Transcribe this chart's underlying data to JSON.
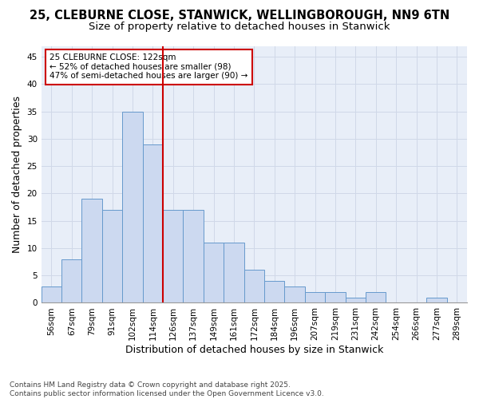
{
  "title_line1": "25, CLEBURNE CLOSE, STANWICK, WELLINGBOROUGH, NN9 6TN",
  "title_line2": "Size of property relative to detached houses in Stanwick",
  "xlabel": "Distribution of detached houses by size in Stanwick",
  "ylabel": "Number of detached properties",
  "categories": [
    "56sqm",
    "67sqm",
    "79sqm",
    "91sqm",
    "102sqm",
    "114sqm",
    "126sqm",
    "137sqm",
    "149sqm",
    "161sqm",
    "172sqm",
    "184sqm",
    "196sqm",
    "207sqm",
    "219sqm",
    "231sqm",
    "242sqm",
    "254sqm",
    "266sqm",
    "277sqm",
    "289sqm"
  ],
  "values": [
    3,
    8,
    19,
    17,
    35,
    29,
    17,
    17,
    11,
    11,
    6,
    4,
    3,
    2,
    2,
    1,
    2,
    0,
    0,
    1,
    0
  ],
  "bar_color": "#ccd9f0",
  "bar_edge_color": "#6699cc",
  "vline_x": 5.5,
  "vline_color": "#cc0000",
  "annotation_text": "25 CLEBURNE CLOSE: 122sqm\n← 52% of detached houses are smaller (98)\n47% of semi-detached houses are larger (90) →",
  "annotation_box_color": "#cc0000",
  "ylim": [
    0,
    47
  ],
  "yticks": [
    0,
    5,
    10,
    15,
    20,
    25,
    30,
    35,
    40,
    45
  ],
  "grid_color": "#d0d8e8",
  "background_color": "#e8eef8",
  "footer_line1": "Contains HM Land Registry data © Crown copyright and database right 2025.",
  "footer_line2": "Contains public sector information licensed under the Open Government Licence v3.0.",
  "title_fontsize": 10.5,
  "subtitle_fontsize": 9.5,
  "axis_label_fontsize": 9,
  "tick_fontsize": 7.5,
  "annotation_fontsize": 7.5,
  "footer_fontsize": 6.5
}
